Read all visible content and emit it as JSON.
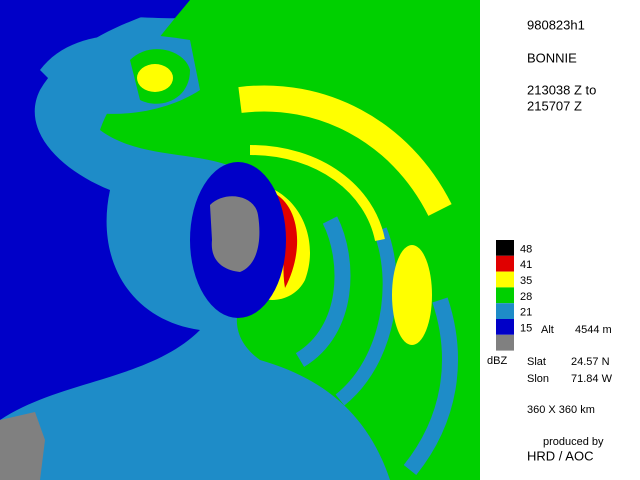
{
  "header": {
    "flight": "980823h1",
    "storm": "BONNIE",
    "time_start": "213038 Z to",
    "time_end": "215707 Z"
  },
  "legend": {
    "items": [
      {
        "label": "48",
        "color": "#000000"
      },
      {
        "label": "41",
        "color": "#e00000"
      },
      {
        "label": "35",
        "color": "#ffff00"
      },
      {
        "label": "28",
        "color": "#00d000"
      },
      {
        "label": "21",
        "color": "#1e8cc8"
      },
      {
        "label": "15",
        "color": "#0000c8"
      },
      {
        "label": null,
        "color": "#808080"
      }
    ],
    "unit": "dBZ",
    "alt_label": "Alt",
    "alt_value": "4544 m"
  },
  "info": {
    "slat_label": "Slat",
    "slat_value": "24.57 N",
    "slon_label": "Slon",
    "slon_value": "71.84 W",
    "domain": "360 X 360 km"
  },
  "credit": {
    "line1": "produced by",
    "line2": "HRD / AOC"
  }
}
